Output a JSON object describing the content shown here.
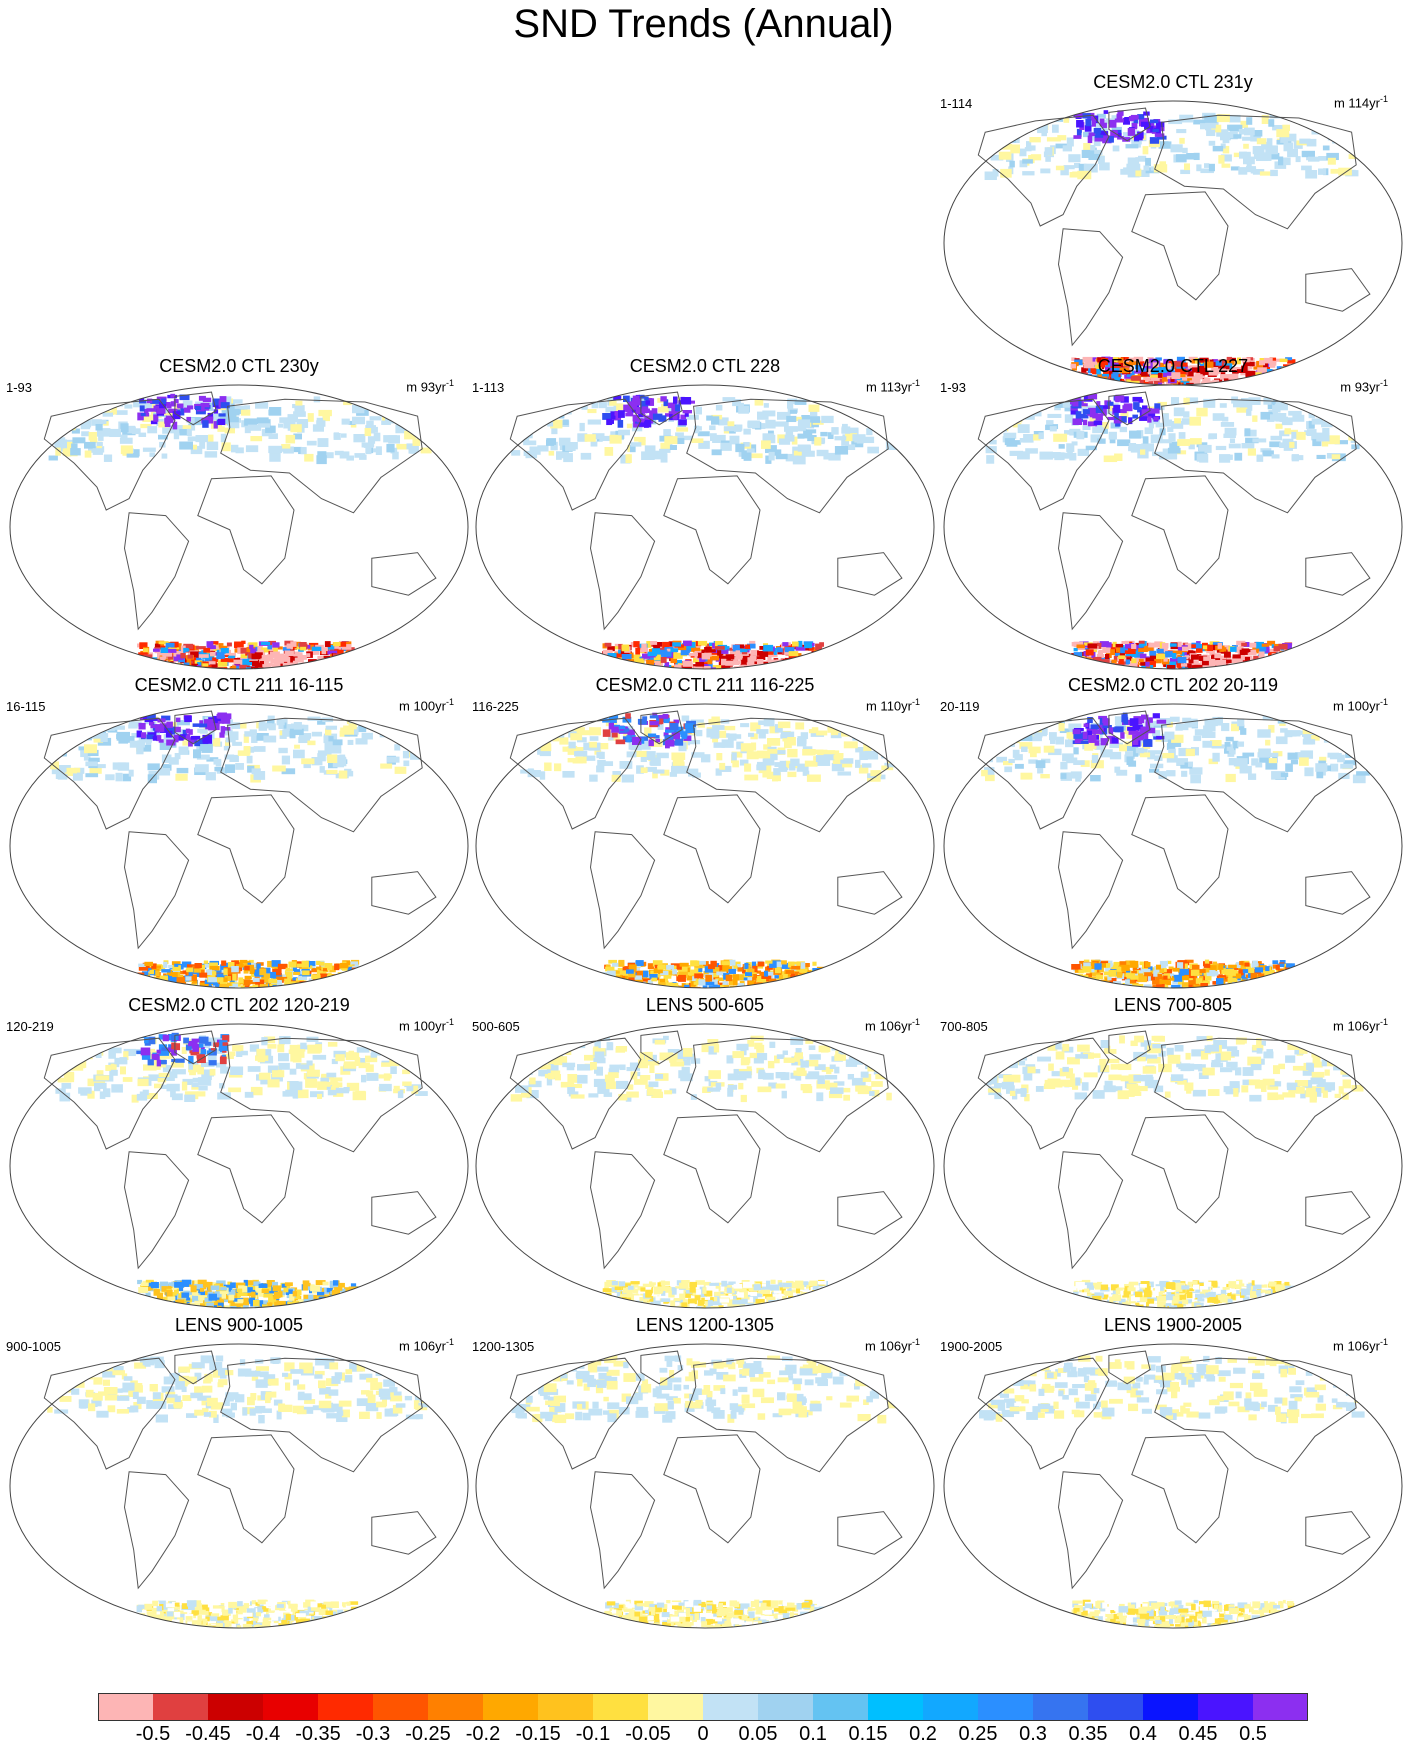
{
  "title": "SND Trends (Annual)",
  "panels": [
    {
      "title": "CESM2.0 CTL 231y",
      "years": "1-114",
      "unit_value": "m 114yr",
      "unit_exp": "-1",
      "intensity": 1.0,
      "south": "strong"
    },
    {
      "title": "CESM2.0 CTL 230y",
      "years": "1-93",
      "unit_value": "m 93yr",
      "unit_exp": "-1",
      "intensity": 1.0,
      "south": "strong"
    },
    {
      "title": "CESM2.0 CTL 228",
      "years": "1-113",
      "unit_value": "m 113yr",
      "unit_exp": "-1",
      "intensity": 1.0,
      "south": "strong"
    },
    {
      "title": "CESM2.0 CTL 227",
      "years": "1-93",
      "unit_value": "m 93yr",
      "unit_exp": "-1",
      "intensity": 1.0,
      "south": "strong"
    },
    {
      "title": "CESM2.0 CTL 211 16-115",
      "years": "16-115",
      "unit_value": "m 100yr",
      "unit_exp": "-1",
      "intensity": 0.8,
      "south": "medium"
    },
    {
      "title": "CESM2.0 CTL 211 116-225",
      "years": "116-225",
      "unit_value": "m 110yr",
      "unit_exp": "-1",
      "intensity": 0.7,
      "south": "medium"
    },
    {
      "title": "CESM2.0 CTL 202 20-119",
      "years": "20-119",
      "unit_value": "m 100yr",
      "unit_exp": "-1",
      "intensity": 0.8,
      "south": "medium"
    },
    {
      "title": "CESM2.0 CTL 202 120-219",
      "years": "120-219",
      "unit_value": "m 100yr",
      "unit_exp": "-1",
      "intensity": 0.6,
      "south": "weak"
    },
    {
      "title": "LENS 500-605",
      "years": "500-605",
      "unit_value": "m 106yr",
      "unit_exp": "-1",
      "intensity": 0.3,
      "south": "faint"
    },
    {
      "title": "LENS 700-805",
      "years": "700-805",
      "unit_value": "m 106yr",
      "unit_exp": "-1",
      "intensity": 0.3,
      "south": "faint"
    },
    {
      "title": "LENS 900-1005",
      "years": "900-1005",
      "unit_value": "m 106yr",
      "unit_exp": "-1",
      "intensity": 0.3,
      "south": "faint"
    },
    {
      "title": "LENS 1200-1305",
      "years": "1200-1305",
      "unit_value": "m 106yr",
      "unit_exp": "-1",
      "intensity": 0.3,
      "south": "faint"
    },
    {
      "title": "LENS 1900-2005",
      "years": "1900-2005",
      "unit_value": "m 106yr",
      "unit_exp": "-1",
      "intensity": 0.3,
      "south": "faint"
    }
  ],
  "colorbar": {
    "labels": [
      "-0.5",
      "-0.45",
      "-0.4",
      "-0.35",
      "-0.3",
      "-0.25",
      "-0.2",
      "-0.15",
      "-0.1",
      "-0.05",
      "0",
      "0.05",
      "0.1",
      "0.15",
      "0.2",
      "0.25",
      "0.3",
      "0.35",
      "0.4",
      "0.45",
      "0.5"
    ],
    "colors": [
      "#fdb5b5",
      "#e04040",
      "#cc0000",
      "#e80000",
      "#ff2a00",
      "#ff5500",
      "#ff8000",
      "#ffa800",
      "#ffc21e",
      "#ffe040",
      "#fff7a0",
      "#c2e2f5",
      "#a0d2f0",
      "#64c3f2",
      "#00bfff",
      "#12a8ff",
      "#2b8fff",
      "#3674f0",
      "#2e4ef0",
      "#0a14ff",
      "#4a14ff",
      "#8c2ff0"
    ]
  }
}
